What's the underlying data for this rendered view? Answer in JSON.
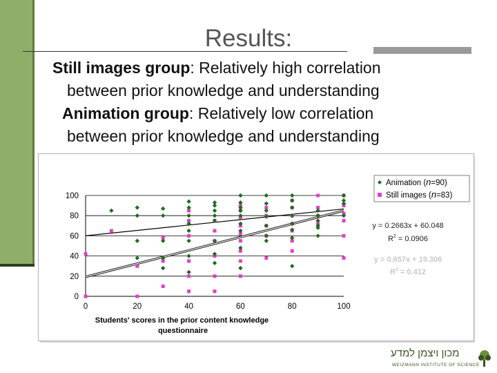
{
  "slide": {
    "title": "Results",
    "title_suffix": ":",
    "lines": [
      {
        "bold": "Still images group",
        "rest": ": Relatively high correlation"
      },
      {
        "bold": "",
        "rest": "between prior knowledge and understanding"
      },
      {
        "bold": "Animation group",
        "rest": ": Relatively low correlation"
      },
      {
        "bold": "",
        "rest": "between prior knowledge and understanding"
      }
    ]
  },
  "logo": {
    "hebrew_text": "מכון ויצמן למדע",
    "sub_text": "WEIZMANN INSTITUTE OF SCIENCE"
  },
  "colors": {
    "animation": "#1e6b1e",
    "still_images": "#e040c8",
    "accent_bar": "#8fae6a",
    "title": "#555555",
    "trend_still": "#9a9a9a"
  },
  "chart_data": {
    "type": "scatter",
    "xlabel": "Students' scores in the prior content knowledge questionnaire",
    "ylabel": "",
    "xlim": [
      0,
      100
    ],
    "ylim": [
      0,
      100
    ],
    "x_ticks": [
      0,
      20,
      40,
      60,
      80,
      100
    ],
    "y_ticks": [
      0,
      20,
      40,
      60,
      80,
      100
    ],
    "grid": "horizontal",
    "legend_position": "top-right",
    "series": [
      {
        "name_prefix": "Animation (",
        "name_n": "n",
        "name_suffix": "=90)",
        "marker": "diamond",
        "points": [
          [
            10,
            85
          ],
          [
            20,
            88
          ],
          [
            20,
            80
          ],
          [
            20,
            55
          ],
          [
            20,
            38
          ],
          [
            30,
            87
          ],
          [
            30,
            80
          ],
          [
            30,
            55
          ],
          [
            30,
            38
          ],
          [
            30,
            28
          ],
          [
            40,
            94
          ],
          [
            40,
            88
          ],
          [
            40,
            80
          ],
          [
            40,
            72
          ],
          [
            40,
            65
          ],
          [
            40,
            55
          ],
          [
            40,
            40
          ],
          [
            40,
            24
          ],
          [
            50,
            93
          ],
          [
            50,
            90
          ],
          [
            50,
            85
          ],
          [
            50,
            80
          ],
          [
            50,
            75
          ],
          [
            50,
            55
          ],
          [
            50,
            42
          ],
          [
            50,
            33
          ],
          [
            60,
            100
          ],
          [
            60,
            93
          ],
          [
            60,
            88
          ],
          [
            60,
            85
          ],
          [
            60,
            80
          ],
          [
            60,
            72
          ],
          [
            60,
            65
          ],
          [
            60,
            48
          ],
          [
            60,
            28
          ],
          [
            70,
            100
          ],
          [
            70,
            92
          ],
          [
            70,
            85
          ],
          [
            70,
            79
          ],
          [
            70,
            70
          ],
          [
            70,
            60
          ],
          [
            70,
            55
          ],
          [
            80,
            100
          ],
          [
            80,
            95
          ],
          [
            80,
            88
          ],
          [
            80,
            80
          ],
          [
            80,
            72
          ],
          [
            80,
            66
          ],
          [
            80,
            58
          ],
          [
            80,
            30
          ],
          [
            90,
            85
          ],
          [
            90,
            80
          ],
          [
            90,
            75
          ],
          [
            90,
            70
          ],
          [
            90,
            68
          ],
          [
            90,
            60
          ],
          [
            100,
            100
          ],
          [
            100,
            95
          ],
          [
            100,
            92
          ],
          [
            100,
            80
          ]
        ]
      },
      {
        "name_prefix": "Still images (",
        "name_n": "n",
        "name_suffix": "=83)",
        "marker": "square",
        "points": [
          [
            0,
            42
          ],
          [
            0,
            0
          ],
          [
            10,
            65
          ],
          [
            20,
            30
          ],
          [
            20,
            0
          ],
          [
            30,
            58
          ],
          [
            30,
            35
          ],
          [
            30,
            10
          ],
          [
            40,
            85
          ],
          [
            40,
            75
          ],
          [
            40,
            60
          ],
          [
            40,
            35
          ],
          [
            40,
            20
          ],
          [
            40,
            5
          ],
          [
            50,
            75
          ],
          [
            50,
            65
          ],
          [
            50,
            55
          ],
          [
            50,
            40
          ],
          [
            50,
            20
          ],
          [
            50,
            5
          ],
          [
            60,
            90
          ],
          [
            60,
            85
          ],
          [
            60,
            78
          ],
          [
            60,
            70
          ],
          [
            60,
            62
          ],
          [
            60,
            55
          ],
          [
            60,
            45
          ],
          [
            60,
            35
          ],
          [
            60,
            20
          ],
          [
            70,
            88
          ],
          [
            70,
            80
          ],
          [
            70,
            70
          ],
          [
            70,
            60
          ],
          [
            70,
            38
          ],
          [
            80,
            95
          ],
          [
            80,
            88
          ],
          [
            80,
            80
          ],
          [
            80,
            72
          ],
          [
            80,
            65
          ],
          [
            80,
            55
          ],
          [
            80,
            45
          ],
          [
            90,
            100
          ],
          [
            90,
            88
          ],
          [
            90,
            80
          ],
          [
            90,
            72
          ],
          [
            100,
            100
          ],
          [
            100,
            90
          ],
          [
            100,
            82
          ],
          [
            100,
            75
          ],
          [
            100,
            60
          ],
          [
            100,
            38
          ]
        ]
      }
    ],
    "trendlines": [
      {
        "series": "Animation",
        "slope": 0.2663,
        "intercept": 60.048,
        "equation": "y = 0.2663x + 60.048",
        "r2_label": "R",
        "r2_exp": "2",
        "r2_value": " = 0.0906"
      },
      {
        "series": "Still images",
        "slope": 0.657,
        "intercept": 19.306,
        "equation": "y = 0.657x + 19.306",
        "r2_label": "R",
        "r2_exp": "2",
        "r2_value": " = 0.412"
      }
    ]
  }
}
